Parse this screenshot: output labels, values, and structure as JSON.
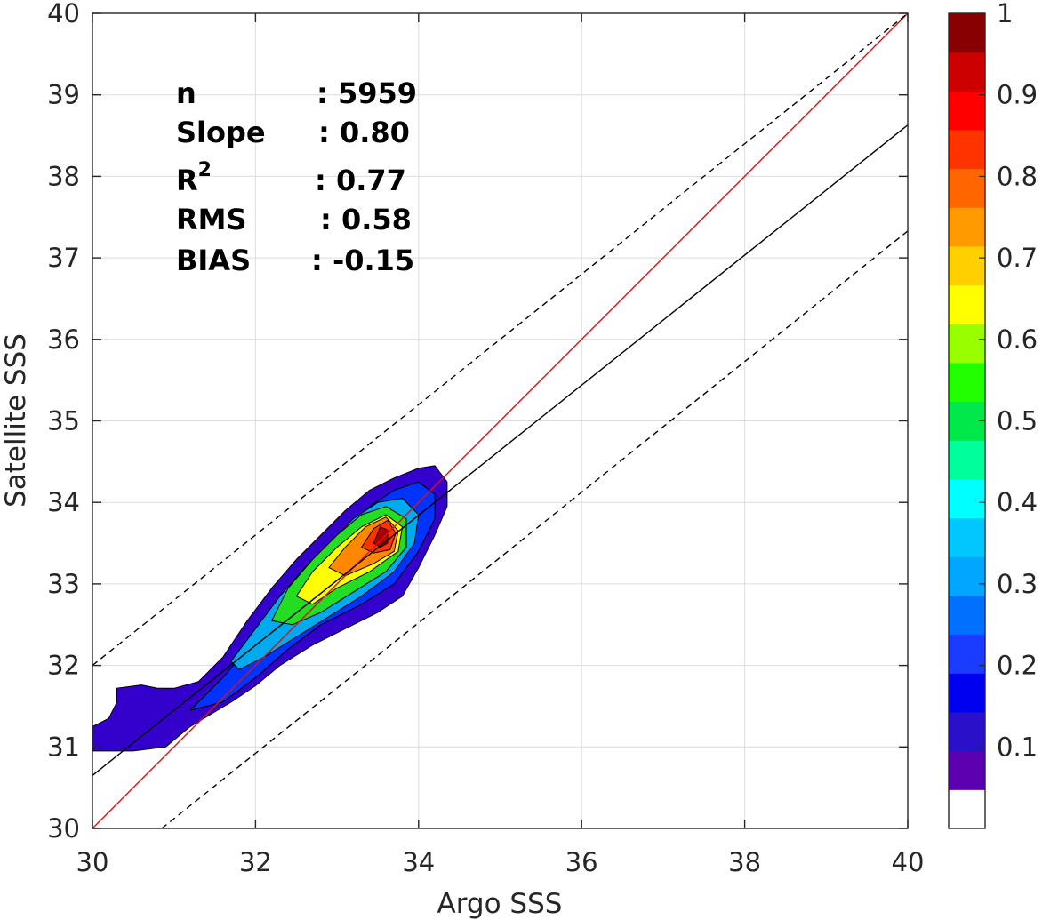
{
  "chart_data": {
    "type": "heatmap",
    "subtype": "filled-contour density scatter",
    "xlabel": "Argo SSS",
    "ylabel": "Satellite SSS",
    "xlim": [
      30,
      40
    ],
    "ylim": [
      30,
      40
    ],
    "xticks": [
      "30",
      "32",
      "34",
      "36",
      "38",
      "40"
    ],
    "yticks": [
      "30",
      "31",
      "32",
      "33",
      "34",
      "35",
      "36",
      "37",
      "38",
      "39",
      "40"
    ],
    "grid": true,
    "stats": [
      {
        "label": "n",
        "value": ": 5959"
      },
      {
        "label": "Slope",
        "value": ": 0.80"
      },
      {
        "label": "R",
        "sup": "2",
        "value": ": 0.77"
      },
      {
        "label": "RMS",
        "value": ": 0.58"
      },
      {
        "label": "BIAS",
        "value": ": -0.15"
      }
    ],
    "lines": [
      {
        "kind": "one-to-one",
        "color": "#e01010",
        "style": "solid",
        "x": [
          30,
          40
        ],
        "y": [
          30,
          40
        ]
      },
      {
        "kind": "regression",
        "color": "#000000",
        "style": "solid",
        "x": [
          30,
          40
        ],
        "y": [
          30.65,
          38.63
        ]
      },
      {
        "kind": "regression-upper",
        "color": "#000000",
        "style": "dashed",
        "x": [
          30,
          40
        ],
        "y": [
          32.0,
          40.0
        ]
      },
      {
        "kind": "regression-lower",
        "color": "#000000",
        "style": "dashed",
        "x": [
          30.85,
          40
        ],
        "y": [
          30.0,
          37.33
        ]
      }
    ],
    "contours": [
      {
        "level": 0.1,
        "color": "#3300cc",
        "points": [
          [
            30,
            31.25
          ],
          [
            30.2,
            31.35
          ],
          [
            30.3,
            31.55
          ],
          [
            30.3,
            31.72
          ],
          [
            30.6,
            31.76
          ],
          [
            30.8,
            31.72
          ],
          [
            31.0,
            31.72
          ],
          [
            31.3,
            31.8
          ],
          [
            31.6,
            32.1
          ],
          [
            31.9,
            32.55
          ],
          [
            32.2,
            32.95
          ],
          [
            32.5,
            33.3
          ],
          [
            32.8,
            33.6
          ],
          [
            33.1,
            33.9
          ],
          [
            33.4,
            34.15
          ],
          [
            33.7,
            34.3
          ],
          [
            34.0,
            34.42
          ],
          [
            34.2,
            34.45
          ],
          [
            34.35,
            34.25
          ],
          [
            34.35,
            33.95
          ],
          [
            34.2,
            33.6
          ],
          [
            34.0,
            33.2
          ],
          [
            33.8,
            32.85
          ],
          [
            33.5,
            32.65
          ],
          [
            33.1,
            32.45
          ],
          [
            32.7,
            32.25
          ],
          [
            32.3,
            32.0
          ],
          [
            32.0,
            31.75
          ],
          [
            31.7,
            31.55
          ],
          [
            31.2,
            31.25
          ],
          [
            30.9,
            31.0
          ],
          [
            30.5,
            30.95
          ],
          [
            30,
            30.95
          ]
        ]
      },
      {
        "level": 0.2,
        "color": "#0033ff",
        "points": [
          [
            31.2,
            31.45
          ],
          [
            31.6,
            31.85
          ],
          [
            31.9,
            32.2
          ],
          [
            32.2,
            32.65
          ],
          [
            32.5,
            33.0
          ],
          [
            32.8,
            33.35
          ],
          [
            33.1,
            33.65
          ],
          [
            33.4,
            33.95
          ],
          [
            33.7,
            34.15
          ],
          [
            34.0,
            34.25
          ],
          [
            34.2,
            34.1
          ],
          [
            34.2,
            33.8
          ],
          [
            34.0,
            33.4
          ],
          [
            33.7,
            33.0
          ],
          [
            33.3,
            32.75
          ],
          [
            32.8,
            32.5
          ],
          [
            32.4,
            32.2
          ],
          [
            32.0,
            31.85
          ],
          [
            31.6,
            31.55
          ]
        ]
      },
      {
        "level": 0.3,
        "color": "#00aaee",
        "points": [
          [
            31.7,
            32.05
          ],
          [
            32.0,
            32.45
          ],
          [
            32.3,
            32.85
          ],
          [
            32.6,
            33.2
          ],
          [
            32.9,
            33.5
          ],
          [
            33.2,
            33.8
          ],
          [
            33.5,
            34.0
          ],
          [
            33.8,
            34.05
          ],
          [
            34.0,
            33.85
          ],
          [
            33.95,
            33.5
          ],
          [
            33.7,
            33.15
          ],
          [
            33.3,
            32.85
          ],
          [
            32.9,
            32.6
          ],
          [
            32.5,
            32.35
          ],
          [
            32.1,
            32.1
          ],
          [
            31.8,
            31.95
          ]
        ]
      },
      {
        "level": 0.5,
        "color": "#22dd22",
        "points": [
          [
            32.2,
            32.55
          ],
          [
            32.4,
            32.95
          ],
          [
            32.7,
            33.3
          ],
          [
            33.0,
            33.6
          ],
          [
            33.3,
            33.85
          ],
          [
            33.6,
            33.95
          ],
          [
            33.85,
            33.8
          ],
          [
            33.85,
            33.45
          ],
          [
            33.6,
            33.15
          ],
          [
            33.2,
            32.9
          ],
          [
            32.8,
            32.65
          ],
          [
            32.45,
            32.5
          ]
        ]
      },
      {
        "level": 0.65,
        "color": "#ffff00",
        "points": [
          [
            32.5,
            32.85
          ],
          [
            32.7,
            33.15
          ],
          [
            33.0,
            33.45
          ],
          [
            33.3,
            33.7
          ],
          [
            33.6,
            33.85
          ],
          [
            33.8,
            33.7
          ],
          [
            33.75,
            33.4
          ],
          [
            33.4,
            33.15
          ],
          [
            33.0,
            32.95
          ],
          [
            32.7,
            32.75
          ]
        ]
      },
      {
        "level": 0.75,
        "color": "#ff8800",
        "points": [
          [
            32.9,
            33.2
          ],
          [
            33.1,
            33.45
          ],
          [
            33.35,
            33.7
          ],
          [
            33.6,
            33.82
          ],
          [
            33.75,
            33.65
          ],
          [
            33.7,
            33.4
          ],
          [
            33.45,
            33.25
          ],
          [
            33.1,
            33.1
          ]
        ]
      },
      {
        "level": 0.85,
        "color": "#ff3300",
        "points": [
          [
            33.3,
            33.45
          ],
          [
            33.45,
            33.68
          ],
          [
            33.62,
            33.78
          ],
          [
            33.72,
            33.62
          ],
          [
            33.65,
            33.42
          ],
          [
            33.45,
            33.38
          ]
        ]
      },
      {
        "level": 0.95,
        "color": "#aa0000",
        "points": [
          [
            33.45,
            33.5
          ],
          [
            33.53,
            33.7
          ],
          [
            33.62,
            33.66
          ],
          [
            33.62,
            33.5
          ],
          [
            33.53,
            33.45
          ]
        ]
      }
    ],
    "colorbar": {
      "ticks": [
        "0.1",
        "0.2",
        "0.3",
        "0.4",
        "0.5",
        "0.6",
        "0.7",
        "0.8",
        "0.9",
        "1"
      ],
      "colors": [
        "#ffffff",
        "#5a00b0",
        "#2a10c8",
        "#0000f0",
        "#1a3cff",
        "#0070ff",
        "#00a6ff",
        "#00c8ff",
        "#00ffff",
        "#00ff9c",
        "#00e84a",
        "#22ff00",
        "#99ff00",
        "#ffff00",
        "#ffd000",
        "#ff9a00",
        "#ff6600",
        "#ff3300",
        "#ff0000",
        "#cc0000",
        "#880000"
      ]
    }
  }
}
